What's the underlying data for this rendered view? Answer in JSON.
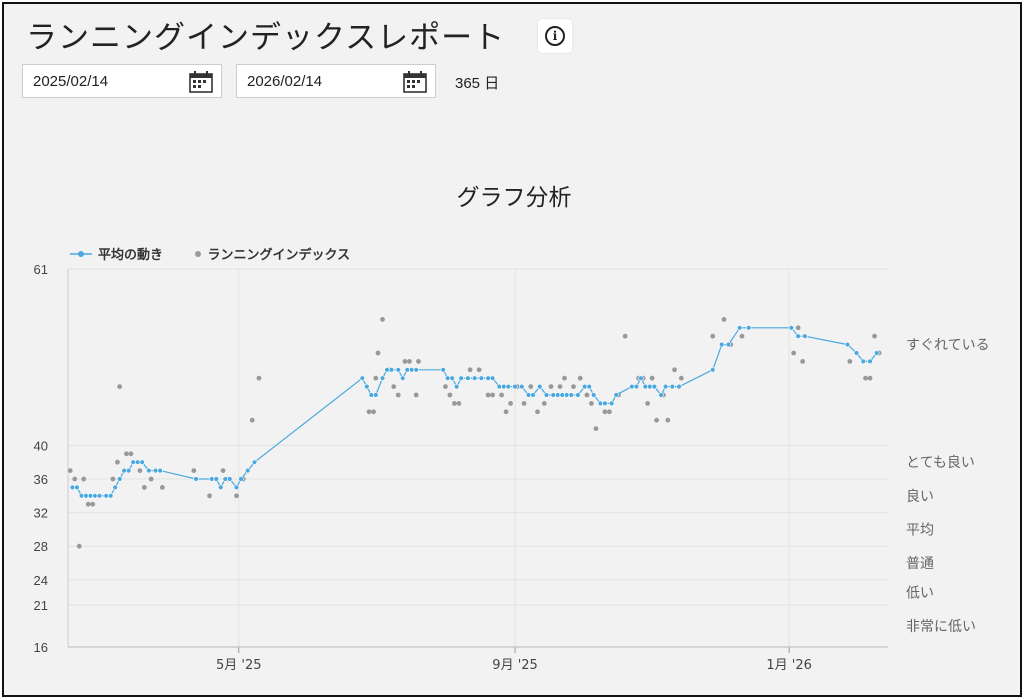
{
  "page": {
    "title": "ランニングインデックスレポート",
    "info_icon": "info-icon",
    "calendar_icon": "calendar-icon"
  },
  "date_range": {
    "start": "2025/02/14",
    "end": "2026/02/14",
    "days": "365 日"
  },
  "chart_data": {
    "type": "scatter",
    "title": "グラフ分析",
    "legend": [
      {
        "name": "平均の動き",
        "color": "#4aa8e0",
        "style": "line-dot"
      },
      {
        "name": "ランニングインデックス",
        "color": "#9a9a9a",
        "style": "dot"
      }
    ],
    "legend_position": "top-left",
    "grid": true,
    "x_range": [
      "2025-02-14",
      "2026-02-14"
    ],
    "x_ticks": [
      {
        "date": "2025-05-01",
        "label": "5月 '25"
      },
      {
        "date": "2025-09-01",
        "label": "9月 '25"
      },
      {
        "date": "2026-01-01",
        "label": "1月 '26"
      }
    ],
    "ylim": [
      16,
      61
    ],
    "y_ticks": [
      16,
      21,
      24,
      28,
      32,
      36,
      40,
      61
    ],
    "category_bands": [
      {
        "label": "すぐれている",
        "y": 52
      },
      {
        "label": "とても良い",
        "y": 38
      },
      {
        "label": "良い",
        "y": 34
      },
      {
        "label": "平均",
        "y": 30
      },
      {
        "label": "普通",
        "y": 26
      },
      {
        "label": "低い",
        "y": 22.5
      },
      {
        "label": "非常に低い",
        "y": 18.5
      }
    ],
    "series": [
      {
        "name": "平均の動き",
        "points": [
          [
            "2025-02-16",
            35
          ],
          [
            "2025-02-18",
            35
          ],
          [
            "2025-02-20",
            34
          ],
          [
            "2025-02-22",
            34
          ],
          [
            "2025-02-24",
            34
          ],
          [
            "2025-02-26",
            34
          ],
          [
            "2025-02-28",
            34
          ],
          [
            "2025-03-03",
            34
          ],
          [
            "2025-03-05",
            34
          ],
          [
            "2025-03-07",
            35
          ],
          [
            "2025-03-09",
            36
          ],
          [
            "2025-03-11",
            37
          ],
          [
            "2025-03-13",
            37
          ],
          [
            "2025-03-15",
            38
          ],
          [
            "2025-03-17",
            38
          ],
          [
            "2025-03-19",
            38
          ],
          [
            "2025-03-22",
            37
          ],
          [
            "2025-03-25",
            37
          ],
          [
            "2025-03-27",
            37
          ],
          [
            "2025-04-12",
            36
          ],
          [
            "2025-04-19",
            36
          ],
          [
            "2025-04-21",
            36
          ],
          [
            "2025-04-23",
            35
          ],
          [
            "2025-04-25",
            36
          ],
          [
            "2025-04-27",
            36
          ],
          [
            "2025-04-30",
            35
          ],
          [
            "2025-05-02",
            36
          ],
          [
            "2025-05-05",
            37
          ],
          [
            "2025-05-08",
            38
          ],
          [
            "2025-06-25",
            48
          ],
          [
            "2025-06-27",
            47
          ],
          [
            "2025-06-29",
            46
          ],
          [
            "2025-07-01",
            46
          ],
          [
            "2025-07-04",
            48
          ],
          [
            "2025-07-06",
            49
          ],
          [
            "2025-07-08",
            49
          ],
          [
            "2025-07-11",
            49
          ],
          [
            "2025-07-13",
            48
          ],
          [
            "2025-07-15",
            49
          ],
          [
            "2025-07-17",
            49
          ],
          [
            "2025-07-19",
            49
          ],
          [
            "2025-07-31",
            49
          ],
          [
            "2025-08-02",
            48
          ],
          [
            "2025-08-04",
            48
          ],
          [
            "2025-08-06",
            47
          ],
          [
            "2025-08-08",
            48
          ],
          [
            "2025-08-11",
            48
          ],
          [
            "2025-08-14",
            48
          ],
          [
            "2025-08-17",
            48
          ],
          [
            "2025-08-20",
            48
          ],
          [
            "2025-08-22",
            48
          ],
          [
            "2025-08-25",
            47
          ],
          [
            "2025-08-27",
            47
          ],
          [
            "2025-08-29",
            47
          ],
          [
            "2025-09-01",
            47
          ],
          [
            "2025-09-04",
            47
          ],
          [
            "2025-09-07",
            46
          ],
          [
            "2025-09-09",
            46
          ],
          [
            "2025-09-12",
            47
          ],
          [
            "2025-09-15",
            46
          ],
          [
            "2025-09-18",
            46
          ],
          [
            "2025-09-20",
            46
          ],
          [
            "2025-09-22",
            46
          ],
          [
            "2025-09-24",
            46
          ],
          [
            "2025-09-26",
            46
          ],
          [
            "2025-09-29",
            46
          ],
          [
            "2025-10-02",
            47
          ],
          [
            "2025-10-04",
            47
          ],
          [
            "2025-10-06",
            46
          ],
          [
            "2025-10-09",
            45
          ],
          [
            "2025-10-11",
            45
          ],
          [
            "2025-10-14",
            45
          ],
          [
            "2025-10-16",
            46
          ],
          [
            "2025-10-23",
            47
          ],
          [
            "2025-10-25",
            47
          ],
          [
            "2025-10-27",
            48
          ],
          [
            "2025-10-29",
            47
          ],
          [
            "2025-10-31",
            47
          ],
          [
            "2025-11-02",
            47
          ],
          [
            "2025-11-05",
            46
          ],
          [
            "2025-11-07",
            47
          ],
          [
            "2025-11-10",
            47
          ],
          [
            "2025-11-13",
            47
          ],
          [
            "2025-11-28",
            49
          ],
          [
            "2025-12-02",
            52
          ],
          [
            "2025-12-05",
            52
          ],
          [
            "2025-12-10",
            54
          ],
          [
            "2025-12-14",
            54
          ],
          [
            "2026-01-02",
            54
          ],
          [
            "2026-01-05",
            53
          ],
          [
            "2026-01-08",
            53
          ],
          [
            "2026-01-27",
            52
          ],
          [
            "2026-01-31",
            51
          ],
          [
            "2026-02-03",
            50
          ],
          [
            "2026-02-06",
            50
          ],
          [
            "2026-02-09",
            51
          ]
        ]
      },
      {
        "name": "ランニングインデックス",
        "points": [
          [
            "2025-02-15",
            37
          ],
          [
            "2025-02-17",
            36
          ],
          [
            "2025-02-19",
            28
          ],
          [
            "2025-02-21",
            36
          ],
          [
            "2025-02-23",
            33
          ],
          [
            "2025-02-25",
            33
          ],
          [
            "2025-03-06",
            36
          ],
          [
            "2025-03-08",
            38
          ],
          [
            "2025-03-09",
            47
          ],
          [
            "2025-03-12",
            39
          ],
          [
            "2025-03-14",
            39
          ],
          [
            "2025-03-18",
            37
          ],
          [
            "2025-03-20",
            35
          ],
          [
            "2025-03-23",
            36
          ],
          [
            "2025-03-28",
            35
          ],
          [
            "2025-04-11",
            37
          ],
          [
            "2025-04-18",
            34
          ],
          [
            "2025-04-24",
            37
          ],
          [
            "2025-04-26",
            36
          ],
          [
            "2025-04-30",
            34
          ],
          [
            "2025-05-03",
            36
          ],
          [
            "2025-05-07",
            43
          ],
          [
            "2025-05-10",
            48
          ],
          [
            "2025-06-28",
            44
          ],
          [
            "2025-06-30",
            44
          ],
          [
            "2025-07-01",
            48
          ],
          [
            "2025-07-02",
            51
          ],
          [
            "2025-07-04",
            55
          ],
          [
            "2025-07-07",
            49
          ],
          [
            "2025-07-09",
            47
          ],
          [
            "2025-07-11",
            46
          ],
          [
            "2025-07-14",
            50
          ],
          [
            "2025-07-16",
            50
          ],
          [
            "2025-07-19",
            46
          ],
          [
            "2025-07-20",
            50
          ],
          [
            "2025-08-01",
            47
          ],
          [
            "2025-08-03",
            46
          ],
          [
            "2025-08-05",
            45
          ],
          [
            "2025-08-07",
            45
          ],
          [
            "2025-08-12",
            49
          ],
          [
            "2025-08-16",
            49
          ],
          [
            "2025-08-20",
            46
          ],
          [
            "2025-08-22",
            46
          ],
          [
            "2025-08-26",
            46
          ],
          [
            "2025-08-28",
            44
          ],
          [
            "2025-08-30",
            45
          ],
          [
            "2025-09-02",
            47
          ],
          [
            "2025-09-05",
            45
          ],
          [
            "2025-09-08",
            47
          ],
          [
            "2025-09-11",
            44
          ],
          [
            "2025-09-14",
            45
          ],
          [
            "2025-09-17",
            47
          ],
          [
            "2025-09-21",
            47
          ],
          [
            "2025-09-23",
            48
          ],
          [
            "2025-09-27",
            47
          ],
          [
            "2025-09-30",
            48
          ],
          [
            "2025-10-03",
            46
          ],
          [
            "2025-10-05",
            45
          ],
          [
            "2025-10-07",
            42
          ],
          [
            "2025-10-11",
            44
          ],
          [
            "2025-10-13",
            44
          ],
          [
            "2025-10-17",
            46
          ],
          [
            "2025-10-20",
            53
          ],
          [
            "2025-10-26",
            48
          ],
          [
            "2025-10-28",
            48
          ],
          [
            "2025-10-30",
            45
          ],
          [
            "2025-11-01",
            48
          ],
          [
            "2025-11-03",
            43
          ],
          [
            "2025-11-06",
            46
          ],
          [
            "2025-11-08",
            43
          ],
          [
            "2025-11-11",
            49
          ],
          [
            "2025-11-14",
            48
          ],
          [
            "2025-11-28",
            53
          ],
          [
            "2025-12-03",
            55
          ],
          [
            "2025-12-06",
            52
          ],
          [
            "2025-12-11",
            53
          ],
          [
            "2026-01-03",
            51
          ],
          [
            "2026-01-05",
            54
          ],
          [
            "2026-01-07",
            50
          ],
          [
            "2026-01-28",
            50
          ],
          [
            "2026-02-04",
            48
          ],
          [
            "2026-02-06",
            48
          ],
          [
            "2026-02-08",
            53
          ],
          [
            "2026-02-10",
            51
          ]
        ]
      }
    ]
  }
}
